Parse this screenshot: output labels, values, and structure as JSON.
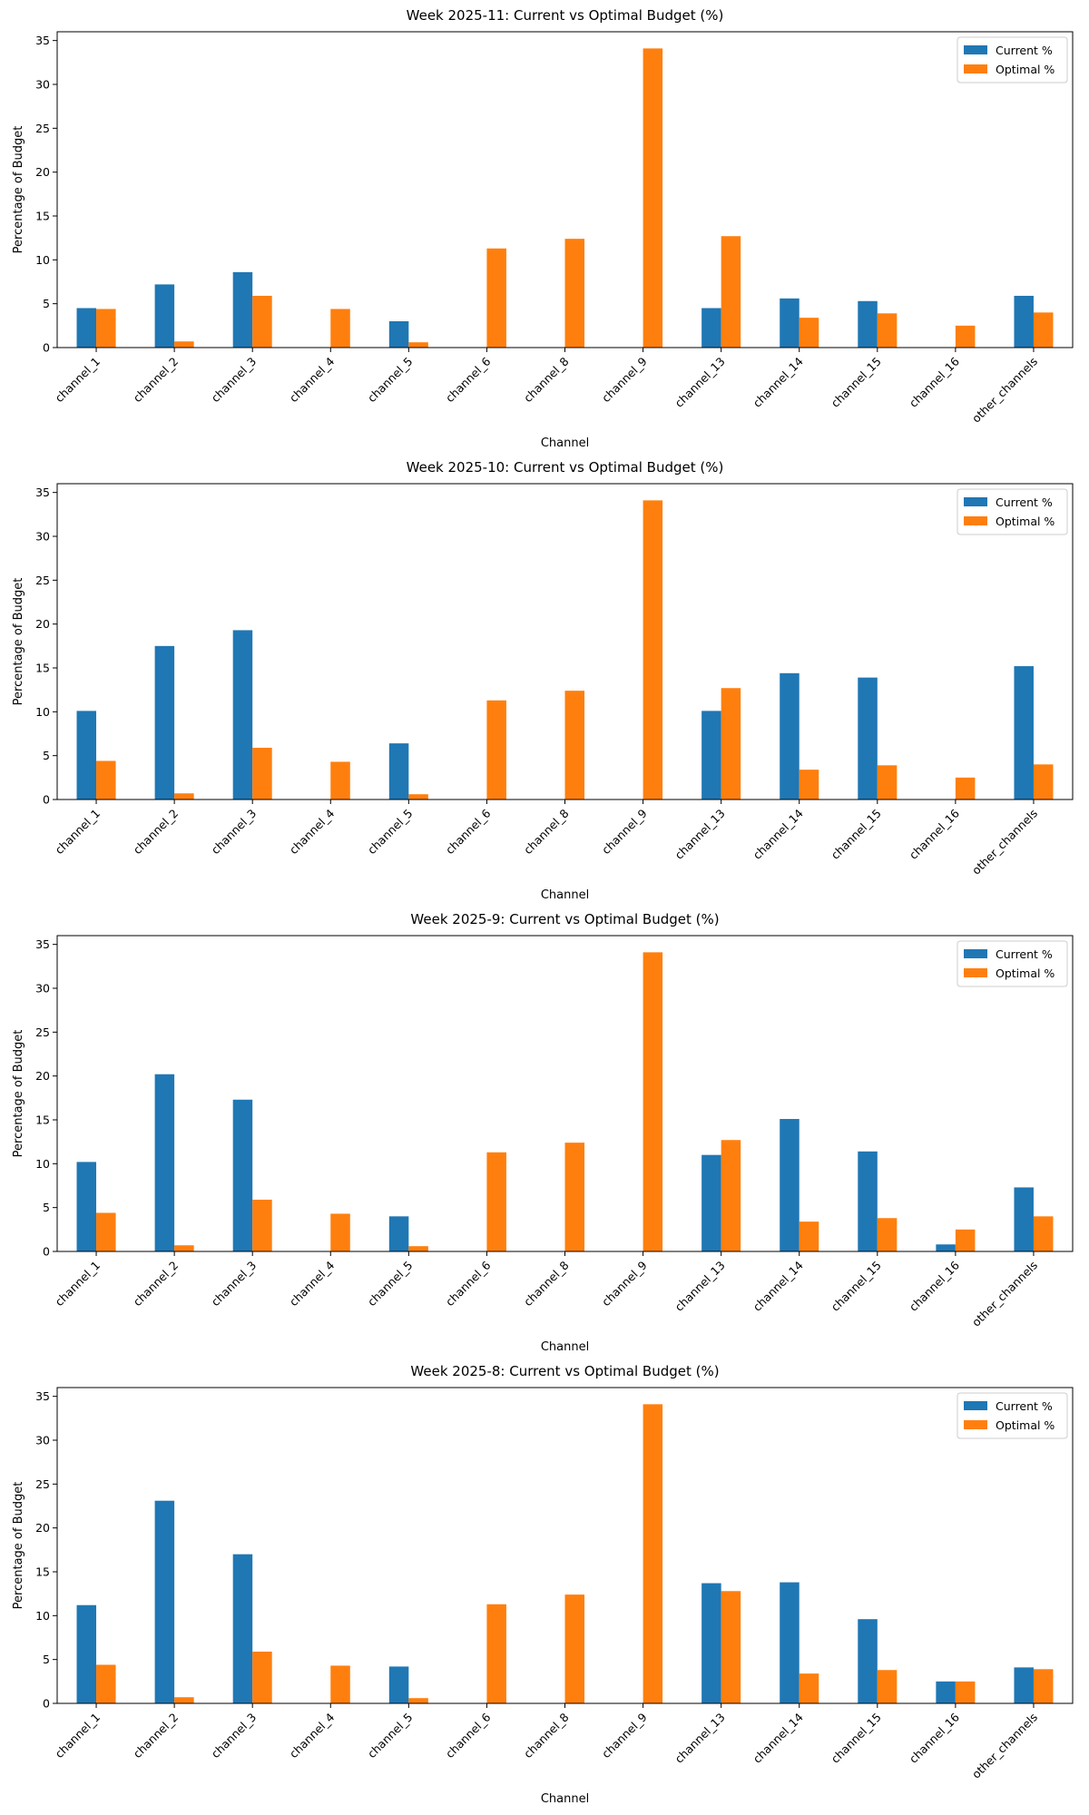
{
  "chart_data": [
    {
      "type": "bar",
      "title": "Week 2025-11: Current vs Optimal Budget (%)",
      "xlabel": "Channel",
      "ylabel": "Percentage of Budget",
      "ylim": [
        0,
        36
      ],
      "yticks": [
        0,
        5,
        10,
        15,
        20,
        25,
        30,
        35
      ],
      "legend_position": "top-right",
      "categories": [
        "channel_1",
        "channel_2",
        "channel_3",
        "channel_4",
        "channel_5",
        "channel_6",
        "channel_8",
        "channel_9",
        "channel_13",
        "channel_14",
        "channel_15",
        "channel_16",
        "other_channels"
      ],
      "series": [
        {
          "name": "Current %",
          "color": "#1f77b4",
          "values": [
            4.5,
            7.2,
            8.6,
            0,
            3.0,
            0,
            0,
            0,
            4.5,
            5.6,
            5.3,
            0,
            5.9
          ]
        },
        {
          "name": "Optimal %",
          "color": "#ff7f0e",
          "values": [
            4.4,
            0.7,
            5.9,
            4.4,
            0.6,
            11.3,
            12.4,
            34.1,
            12.7,
            3.4,
            3.9,
            2.5,
            4.0
          ]
        }
      ]
    },
    {
      "type": "bar",
      "title": "Week 2025-10: Current vs Optimal Budget (%)",
      "xlabel": "Channel",
      "ylabel": "Percentage of Budget",
      "ylim": [
        0,
        36
      ],
      "yticks": [
        0,
        5,
        10,
        15,
        20,
        25,
        30,
        35
      ],
      "legend_position": "top-right",
      "categories": [
        "channel_1",
        "channel_2",
        "channel_3",
        "channel_4",
        "channel_5",
        "channel_6",
        "channel_8",
        "channel_9",
        "channel_13",
        "channel_14",
        "channel_15",
        "channel_16",
        "other_channels"
      ],
      "series": [
        {
          "name": "Current %",
          "color": "#1f77b4",
          "values": [
            10.1,
            17.5,
            19.3,
            0,
            6.4,
            0,
            0,
            0,
            10.1,
            14.4,
            13.9,
            0,
            15.2
          ]
        },
        {
          "name": "Optimal %",
          "color": "#ff7f0e",
          "values": [
            4.4,
            0.7,
            5.9,
            4.3,
            0.6,
            11.3,
            12.4,
            34.1,
            12.7,
            3.4,
            3.9,
            2.5,
            4.0
          ]
        }
      ]
    },
    {
      "type": "bar",
      "title": "Week 2025-9: Current vs Optimal Budget (%)",
      "xlabel": "Channel",
      "ylabel": "Percentage of Budget",
      "ylim": [
        0,
        36
      ],
      "yticks": [
        0,
        5,
        10,
        15,
        20,
        25,
        30,
        35
      ],
      "legend_position": "top-right",
      "categories": [
        "channel_1",
        "channel_2",
        "channel_3",
        "channel_4",
        "channel_5",
        "channel_6",
        "channel_8",
        "channel_9",
        "channel_13",
        "channel_14",
        "channel_15",
        "channel_16",
        "other_channels"
      ],
      "series": [
        {
          "name": "Current %",
          "color": "#1f77b4",
          "values": [
            10.2,
            20.2,
            17.3,
            0,
            4.0,
            0,
            0,
            0,
            11.0,
            15.1,
            11.4,
            0.8,
            7.3
          ]
        },
        {
          "name": "Optimal %",
          "color": "#ff7f0e",
          "values": [
            4.4,
            0.7,
            5.9,
            4.3,
            0.6,
            11.3,
            12.4,
            34.1,
            12.7,
            3.4,
            3.8,
            2.5,
            4.0
          ]
        }
      ]
    },
    {
      "type": "bar",
      "title": "Week 2025-8: Current vs Optimal Budget (%)",
      "xlabel": "Channel",
      "ylabel": "Percentage of Budget",
      "ylim": [
        0,
        36
      ],
      "yticks": [
        0,
        5,
        10,
        15,
        20,
        25,
        30,
        35
      ],
      "legend_position": "top-right",
      "categories": [
        "channel_1",
        "channel_2",
        "channel_3",
        "channel_4",
        "channel_5",
        "channel_6",
        "channel_8",
        "channel_9",
        "channel_13",
        "channel_14",
        "channel_15",
        "channel_16",
        "other_channels"
      ],
      "series": [
        {
          "name": "Current %",
          "color": "#1f77b4",
          "values": [
            11.2,
            23.1,
            17.0,
            0,
            4.2,
            0,
            0,
            0,
            13.7,
            13.8,
            9.6,
            2.5,
            4.1
          ]
        },
        {
          "name": "Optimal %",
          "color": "#ff7f0e",
          "values": [
            4.4,
            0.7,
            5.9,
            4.3,
            0.6,
            11.3,
            12.4,
            34.1,
            12.8,
            3.4,
            3.8,
            2.5,
            3.9
          ]
        }
      ]
    }
  ]
}
